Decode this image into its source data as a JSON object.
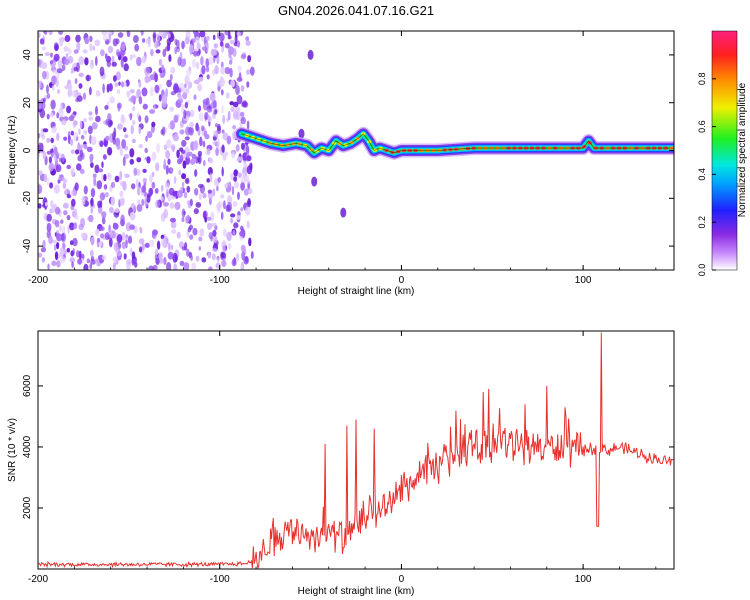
{
  "title": "GN04.2026.041.07.16.G21",
  "chart_data": [
    {
      "type": "heatmap",
      "name": "spectrogram",
      "xlabel": "Height of straight line (km)",
      "ylabel": "Frequency (Hz)",
      "xlim": [
        -200,
        150
      ],
      "ylim": [
        -50,
        50
      ],
      "xticks": [
        -200,
        -100,
        0,
        100
      ],
      "yticks": [
        -40,
        -20,
        0,
        20,
        40
      ],
      "noise_region_x": [
        -200,
        -82
      ],
      "signal_trace": {
        "x": [
          -88,
          -80,
          -72,
          -65,
          -58,
          -52,
          -48,
          -44,
          -40,
          -36,
          -32,
          -28,
          -24,
          -21,
          -18,
          -15,
          -12,
          -8,
          -4,
          0,
          20,
          40,
          60,
          80,
          100,
          103,
          106,
          120,
          150
        ],
        "y": [
          7,
          5,
          3,
          2,
          3,
          2,
          -1,
          1,
          0,
          4,
          2,
          3,
          5,
          7,
          4,
          0,
          1,
          0,
          -1,
          0,
          0,
          1,
          1,
          1,
          1,
          4,
          1,
          1,
          1
        ]
      },
      "spurious_blobs": [
        {
          "x": -48,
          "y": -13
        },
        {
          "x": -32,
          "y": -26
        },
        {
          "x": -55,
          "y": 7
        },
        {
          "x": -50,
          "y": 40
        }
      ],
      "colorbar": {
        "label": "Normalized spectral amplitude",
        "range": [
          0,
          1
        ],
        "ticks": [
          "0.0",
          "0.2",
          "0.4",
          "0.6",
          "0.8"
        ]
      }
    },
    {
      "type": "line",
      "name": "snr",
      "xlabel": "Height of straight line (km)",
      "ylabel": "SNR (10 * v/v)",
      "xlim": [
        -200,
        150
      ],
      "ylim": [
        0,
        7800
      ],
      "xticks": [
        -200,
        -100,
        0,
        100
      ],
      "yticks": [
        2000,
        4000,
        6000
      ],
      "color": "#e8312d",
      "envelope": {
        "x": [
          -200,
          -100,
          -85,
          -78,
          -70,
          -60,
          -50,
          -40,
          -30,
          -20,
          -10,
          0,
          10,
          20,
          30,
          40,
          50,
          60,
          70,
          80,
          90,
          100,
          105,
          108,
          110,
          115,
          120,
          130,
          140,
          150
        ],
        "y": [
          150,
          150,
          180,
          500,
          1000,
          1300,
          1100,
          1200,
          1000,
          1700,
          2000,
          2600,
          3000,
          3400,
          3800,
          4000,
          4100,
          4100,
          4050,
          4000,
          3950,
          3900,
          3950,
          3900,
          3950,
          3900,
          4000,
          3800,
          3600,
          3500
        ]
      },
      "spikes": [
        {
          "x": -42,
          "y": 4100
        },
        {
          "x": -30,
          "y": 4700
        },
        {
          "x": -25,
          "y": 4900
        },
        {
          "x": -15,
          "y": 4600
        },
        {
          "x": 45,
          "y": 5800
        },
        {
          "x": 48,
          "y": 5900
        },
        {
          "x": 68,
          "y": 5400
        },
        {
          "x": 80,
          "y": 6000
        },
        {
          "x": 90,
          "y": 5300
        },
        {
          "x": 108,
          "y": 7400
        },
        {
          "x": 110,
          "y": 7750
        }
      ],
      "dip": {
        "x": 108,
        "y": 1400
      }
    }
  ]
}
